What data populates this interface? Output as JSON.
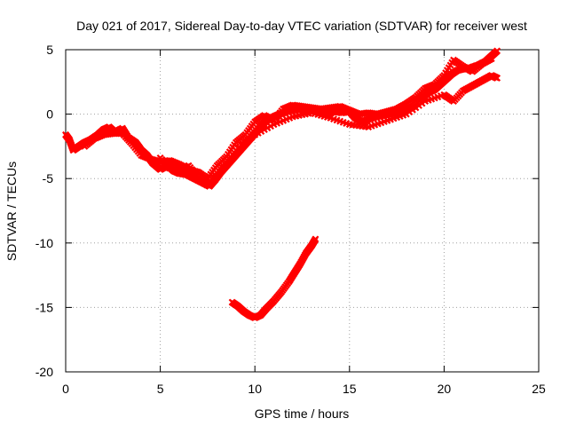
{
  "chart_data": {
    "type": "scatter",
    "title": "Day 021 of 2017, Sidereal Day-to-day VTEC variation (SDTVAR) for receiver west",
    "xlabel": "GPS time / hours",
    "ylabel": "SDTVAR / TECUs",
    "xlim": [
      0,
      25
    ],
    "ylim": [
      -20,
      5
    ],
    "xticks": [
      0,
      5,
      10,
      15,
      20,
      25
    ],
    "yticks": [
      5,
      0,
      -5,
      -10,
      -15,
      -20
    ],
    "grid": true,
    "series": [
      {
        "name": "main",
        "color": "#ff0000",
        "points": [
          [
            0.0,
            -1.6
          ],
          [
            0.2,
            -2.0
          ],
          [
            0.4,
            -2.8
          ],
          [
            0.7,
            -2.5
          ],
          [
            1.0,
            -2.2
          ],
          [
            1.3,
            -2.0
          ],
          [
            1.7,
            -1.6
          ],
          [
            2.0,
            -1.2
          ],
          [
            2.3,
            -1.0
          ],
          [
            2.6,
            -1.4
          ],
          [
            3.0,
            -1.1
          ],
          [
            3.3,
            -1.8
          ],
          [
            3.7,
            -2.2
          ],
          [
            4.0,
            -2.8
          ],
          [
            4.3,
            -3.2
          ],
          [
            4.6,
            -3.8
          ],
          [
            5.0,
            -4.3
          ],
          [
            5.4,
            -4.0
          ],
          [
            5.7,
            -4.4
          ],
          [
            6.0,
            -4.6
          ],
          [
            6.4,
            -4.7
          ],
          [
            6.8,
            -5.0
          ],
          [
            7.2,
            -5.3
          ],
          [
            7.6,
            -5.6
          ],
          [
            7.9,
            -5.1
          ],
          [
            8.2,
            -4.5
          ],
          [
            8.5,
            -4.0
          ],
          [
            8.8,
            -3.5
          ],
          [
            9.1,
            -3.0
          ],
          [
            9.4,
            -2.5
          ],
          [
            9.7,
            -2.0
          ],
          [
            10.0,
            -1.5
          ],
          [
            10.3,
            -1.0
          ],
          [
            10.6,
            -0.5
          ],
          [
            11.0,
            -0.2
          ],
          [
            11.3,
            0.0
          ],
          [
            11.7,
            0.2
          ],
          [
            12.0,
            0.3
          ],
          [
            12.3,
            0.4
          ],
          [
            12.6,
            0.3
          ],
          [
            13.0,
            0.4
          ],
          [
            13.4,
            0.1
          ],
          [
            13.8,
            0.0
          ],
          [
            14.2,
            0.2
          ],
          [
            14.6,
            0.1
          ],
          [
            15.0,
            0.2
          ],
          [
            15.3,
            -0.3
          ],
          [
            15.7,
            -0.6
          ],
          [
            16.0,
            -0.4
          ],
          [
            16.4,
            -0.2
          ],
          [
            16.8,
            -0.1
          ],
          [
            17.2,
            0.0
          ],
          [
            17.6,
            0.1
          ],
          [
            18.0,
            0.3
          ],
          [
            18.4,
            0.6
          ],
          [
            18.8,
            1.2
          ],
          [
            19.2,
            1.7
          ],
          [
            19.5,
            1.9
          ],
          [
            19.8,
            2.3
          ],
          [
            20.1,
            2.7
          ],
          [
            20.4,
            3.1
          ],
          [
            20.7,
            3.4
          ],
          [
            21.0,
            3.5
          ],
          [
            21.4,
            3.6
          ],
          [
            21.8,
            3.8
          ],
          [
            22.2,
            4.1
          ],
          [
            22.5,
            4.5
          ],
          [
            22.8,
            4.9
          ]
        ]
      },
      {
        "name": "upper-branch",
        "color": "#ff0000",
        "points": [
          [
            1.0,
            -2.5
          ],
          [
            1.5,
            -1.9
          ],
          [
            2.0,
            -1.6
          ],
          [
            2.5,
            -1.5
          ],
          [
            3.0,
            -1.5
          ],
          [
            3.5,
            -2.3
          ],
          [
            4.0,
            -3.2
          ],
          [
            4.5,
            -3.5
          ],
          [
            5.0,
            -3.7
          ],
          [
            5.5,
            -3.6
          ],
          [
            6.0,
            -3.9
          ],
          [
            6.5,
            -4.3
          ],
          [
            7.0,
            -4.5
          ],
          [
            7.5,
            -5.0
          ],
          [
            8.0,
            -4.0
          ],
          [
            8.5,
            -3.3
          ],
          [
            9.0,
            -2.2
          ],
          [
            9.5,
            -1.6
          ],
          [
            10.0,
            -0.6
          ],
          [
            10.5,
            -0.1
          ],
          [
            11.0,
            -0.5
          ],
          [
            11.5,
            0.4
          ],
          [
            12.0,
            0.7
          ],
          [
            12.5,
            0.6
          ],
          [
            13.0,
            0.5
          ],
          [
            13.5,
            0.4
          ],
          [
            14.0,
            0.5
          ],
          [
            14.5,
            0.6
          ],
          [
            15.0,
            0.3
          ],
          [
            15.5,
            0.0
          ],
          [
            16.0,
            0.1
          ],
          [
            16.5,
            0.0
          ],
          [
            17.0,
            0.2
          ],
          [
            17.5,
            0.4
          ],
          [
            18.0,
            0.8
          ],
          [
            18.5,
            1.3
          ],
          [
            19.0,
            2.0
          ],
          [
            19.5,
            2.3
          ],
          [
            20.0,
            3.0
          ],
          [
            20.5,
            4.2
          ],
          [
            21.0,
            3.7
          ],
          [
            21.5,
            3.3
          ],
          [
            22.0,
            3.9
          ],
          [
            22.5,
            4.3
          ]
        ]
      },
      {
        "name": "lower-branch",
        "color": "#ff0000",
        "points": [
          [
            5.0,
            -3.4
          ],
          [
            5.5,
            -4.2
          ],
          [
            6.0,
            -4.4
          ],
          [
            6.5,
            -4.0
          ],
          [
            7.0,
            -4.9
          ],
          [
            7.5,
            -5.4
          ],
          [
            8.0,
            -4.8
          ],
          [
            9.0,
            -2.8
          ],
          [
            10.0,
            -1.6
          ],
          [
            11.0,
            -0.8
          ],
          [
            12.0,
            -0.2
          ],
          [
            13.0,
            0.1
          ],
          [
            14.0,
            -0.3
          ],
          [
            15.0,
            -0.8
          ],
          [
            16.0,
            -1.0
          ],
          [
            17.0,
            -0.5
          ],
          [
            18.0,
            0.0
          ],
          [
            19.0,
            1.0
          ],
          [
            20.0,
            1.5
          ],
          [
            20.5,
            1.0
          ],
          [
            21.0,
            1.8
          ],
          [
            21.5,
            2.2
          ],
          [
            22.0,
            2.6
          ],
          [
            22.5,
            3.0
          ],
          [
            22.8,
            2.8
          ]
        ]
      },
      {
        "name": "prn-arc",
        "color": "#ff0000",
        "points": [
          [
            8.8,
            -14.6
          ],
          [
            9.1,
            -14.9
          ],
          [
            9.4,
            -15.3
          ],
          [
            9.7,
            -15.6
          ],
          [
            10.0,
            -15.8
          ],
          [
            10.3,
            -15.6
          ],
          [
            10.6,
            -15.1
          ],
          [
            11.0,
            -14.5
          ],
          [
            11.4,
            -13.8
          ],
          [
            11.8,
            -13.0
          ],
          [
            12.1,
            -12.3
          ],
          [
            12.4,
            -11.6
          ],
          [
            12.7,
            -10.8
          ],
          [
            13.0,
            -10.2
          ],
          [
            13.2,
            -9.7
          ]
        ]
      }
    ]
  }
}
